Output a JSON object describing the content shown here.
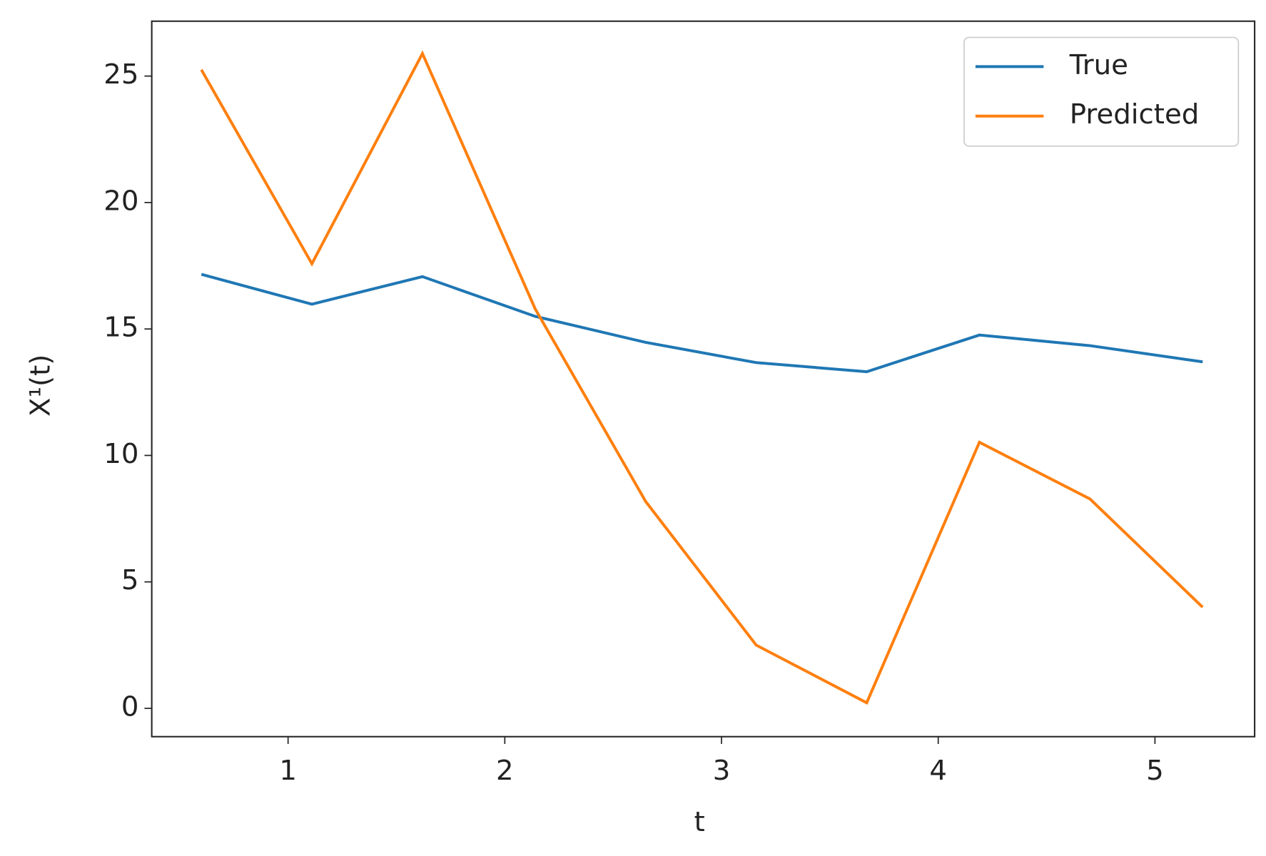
{
  "chart_data": {
    "type": "line",
    "x_label": "t",
    "y_label": "X¹(t)",
    "x": [
      0.6,
      1.11,
      1.62,
      2.14,
      2.65,
      3.16,
      3.67,
      4.19,
      4.7,
      5.22
    ],
    "series": [
      {
        "name": "True",
        "color": "#1f77b4",
        "values": [
          17.16,
          15.98,
          17.07,
          15.5,
          14.47,
          13.67,
          13.31,
          14.76,
          14.34,
          13.7
        ]
      },
      {
        "name": "Predicted",
        "color": "#ff7f0e",
        "values": [
          25.25,
          17.58,
          25.89,
          15.8,
          8.18,
          2.5,
          0.22,
          10.52,
          8.28,
          4.0
        ]
      }
    ],
    "xlim": [
      0.371,
      5.46
    ],
    "ylim": [
      -1.12,
      27.17
    ],
    "xticks": [
      1,
      2,
      3,
      4,
      5
    ],
    "yticks": [
      0,
      5,
      10,
      15,
      20,
      25
    ],
    "grid": false,
    "legend": "upper right"
  }
}
